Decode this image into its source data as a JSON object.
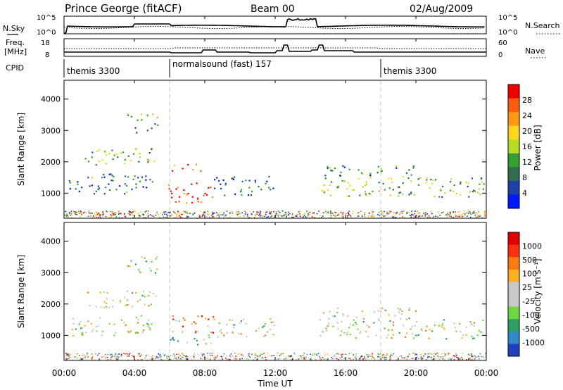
{
  "header": {
    "station": "Prince George (fitACF)",
    "beam": "Beam 00",
    "date": "02/Aug/2009"
  },
  "strip_labels": {
    "nsky": "N.Sky",
    "nsky_ticks": [
      "10^5",
      "10^0"
    ],
    "nsearch": "N.Search",
    "nsearch_ticks": [
      "10^5",
      "10^0"
    ],
    "freq_line1": "Freq.",
    "freq_line2": "[MHz]",
    "freq_ticks": [
      "18",
      "8"
    ],
    "nave": "Nave",
    "nave_ticks": [
      "60",
      "0"
    ],
    "cpid": "CPID"
  },
  "cpid_segments": [
    {
      "label": "themis 3300",
      "start_hour": 0
    },
    {
      "label": "normalsound (fast) 157",
      "start_hour": 6
    },
    {
      "label": "themis 3300",
      "start_hour": 18
    }
  ],
  "time_axis": {
    "label": "Time UT",
    "ticks": [
      "00:00",
      "04:00",
      "08:00",
      "12:00",
      "16:00",
      "20:00",
      "00:00"
    ],
    "range_hours": [
      0,
      24
    ]
  },
  "chart_data": [
    {
      "type": "heatmap",
      "title": "",
      "xlabel": "",
      "ylabel": "Slant Range [km]",
      "ylim": [
        200,
        4600
      ],
      "yticks": [
        "1000",
        "2000",
        "3000",
        "4000"
      ],
      "colorbar_label": "Power [dB]",
      "colorbar_ticks": [
        "28",
        "24",
        "20",
        "16",
        "12",
        "8",
        "4"
      ],
      "colors": [
        "#0018ff",
        "#1e3fa8",
        "#2f6f4e",
        "#34a030",
        "#b8dc28",
        "#ffd81e",
        "#ff9a12",
        "#ff5a0e",
        "#f00000"
      ],
      "regions": [
        {
          "t0": 0.2,
          "t1": 5.0,
          "r0": 1000,
          "r1": 1650,
          "level": 0.25
        },
        {
          "t0": 1.0,
          "t1": 5.2,
          "r0": 1900,
          "r1": 2450,
          "level": 0.45
        },
        {
          "t0": 3.5,
          "t1": 5.3,
          "r0": 2950,
          "r1": 3550,
          "level": 0.4
        },
        {
          "t0": 5.8,
          "t1": 8.5,
          "r0": 700,
          "r1": 1350,
          "level": 0.95
        },
        {
          "t0": 6.0,
          "t1": 7.8,
          "r0": 1700,
          "r1": 1950,
          "level": 0.75
        },
        {
          "t0": 8.5,
          "t1": 12.0,
          "r0": 950,
          "r1": 1550,
          "level": 0.2
        },
        {
          "t0": 14.5,
          "t1": 24.0,
          "r0": 900,
          "r1": 1550,
          "level": 0.45
        },
        {
          "t0": 14.7,
          "t1": 20.0,
          "r0": 1550,
          "r1": 1900,
          "level": 0.3
        }
      ]
    },
    {
      "type": "heatmap",
      "title": "",
      "xlabel": "Time UT",
      "ylabel": "Slant Range [km]",
      "ylim": [
        200,
        4600
      ],
      "yticks": [
        "1000",
        "2000",
        "3000",
        "4000"
      ],
      "colorbar_label": "Velocity [m s⁻¹]",
      "colorbar_ticks": [
        "1000",
        "500",
        "100",
        "25",
        "-25",
        "-100",
        "-500",
        "-1000"
      ],
      "colors": [
        "#2040c0",
        "#2e8ac8",
        "#2ea060",
        "#6ed840",
        "#c8c8c8",
        "#c8c8c8",
        "#ffb020",
        "#ff7a10",
        "#ff3010",
        "#e00000"
      ],
      "regions": [
        {
          "t0": 0.2,
          "t1": 5.0,
          "r0": 1000,
          "r1": 1650,
          "level": 0.5
        },
        {
          "t0": 1.0,
          "t1": 5.2,
          "r0": 1900,
          "r1": 2450,
          "level": 0.5
        },
        {
          "t0": 3.5,
          "t1": 5.3,
          "r0": 2950,
          "r1": 3550,
          "level": 0.5
        },
        {
          "t0": 6.0,
          "t1": 8.5,
          "r0": 1050,
          "r1": 1650,
          "level": 0.75
        },
        {
          "t0": 6.0,
          "t1": 8.5,
          "r0": 700,
          "r1": 1050,
          "level": 0.3
        },
        {
          "t0": 8.5,
          "t1": 12.0,
          "r0": 950,
          "r1": 1550,
          "level": 0.5
        },
        {
          "t0": 14.5,
          "t1": 24.0,
          "r0": 900,
          "r1": 1550,
          "level": 0.5
        },
        {
          "t0": 14.7,
          "t1": 20.0,
          "r0": 1550,
          "r1": 1900,
          "level": 0.5
        }
      ]
    }
  ]
}
